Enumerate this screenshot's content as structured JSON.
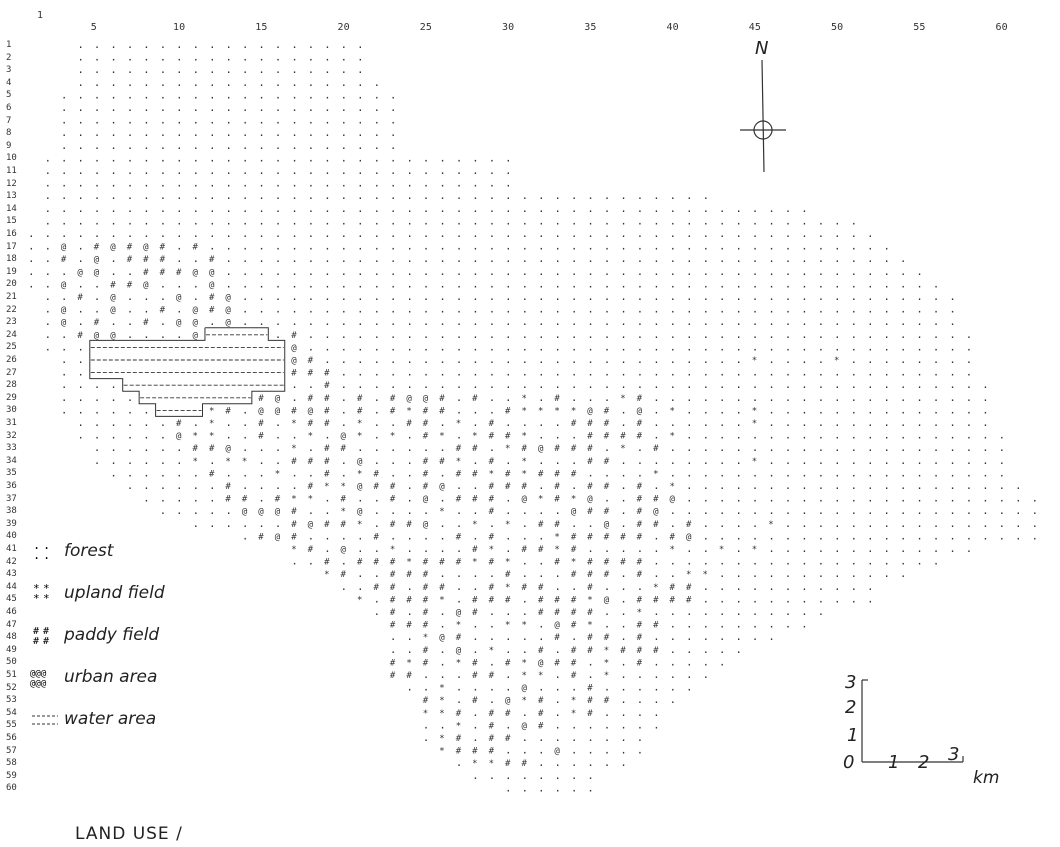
{
  "grid": {
    "first_row_label": "1",
    "column_labels": [
      "5",
      "10",
      "15",
      "20",
      "25",
      "30",
      "35",
      "40",
      "45",
      "50",
      "55",
      "60"
    ],
    "row_labels": [
      "1",
      "2",
      "3",
      "4",
      "5",
      "6",
      "7",
      "8",
      "9",
      "10",
      "11",
      "12",
      "13",
      "14",
      "15",
      "16",
      "17",
      "18",
      "19",
      "20",
      "21",
      "22",
      "23",
      "24",
      "25",
      "26",
      "27",
      "28",
      "29",
      "30",
      "31",
      "32",
      "33",
      "34",
      "35",
      "36",
      "37",
      "38",
      "39",
      "40",
      "41",
      "42",
      "43",
      "44",
      "45",
      "46",
      "47",
      "48",
      "49",
      "50",
      "51",
      "52",
      "53",
      "54",
      "55",
      "56",
      "57",
      "58",
      "59",
      "60"
    ]
  },
  "legend": [
    {
      "symbol": ". .",
      "label": "forest",
      "class": "forest"
    },
    {
      "symbol": "* *",
      "label": "upland field",
      "class": "upland"
    },
    {
      "symbol": "# #",
      "label": "paddy field",
      "class": "paddy"
    },
    {
      "symbol": "@@@",
      "label": "urban area",
      "class": "urban"
    },
    {
      "symbol": "---",
      "label": "water area",
      "class": "water"
    }
  ],
  "title": "LAND USE /",
  "north": {
    "label": "N"
  },
  "scale": {
    "vertical_labels": [
      "3",
      "2",
      "1",
      "0"
    ],
    "horizontal_labels": [
      "1",
      "2",
      "3"
    ],
    "unit": "km"
  },
  "colors": {
    "ink": "#333333",
    "background": "#ffffff"
  }
}
